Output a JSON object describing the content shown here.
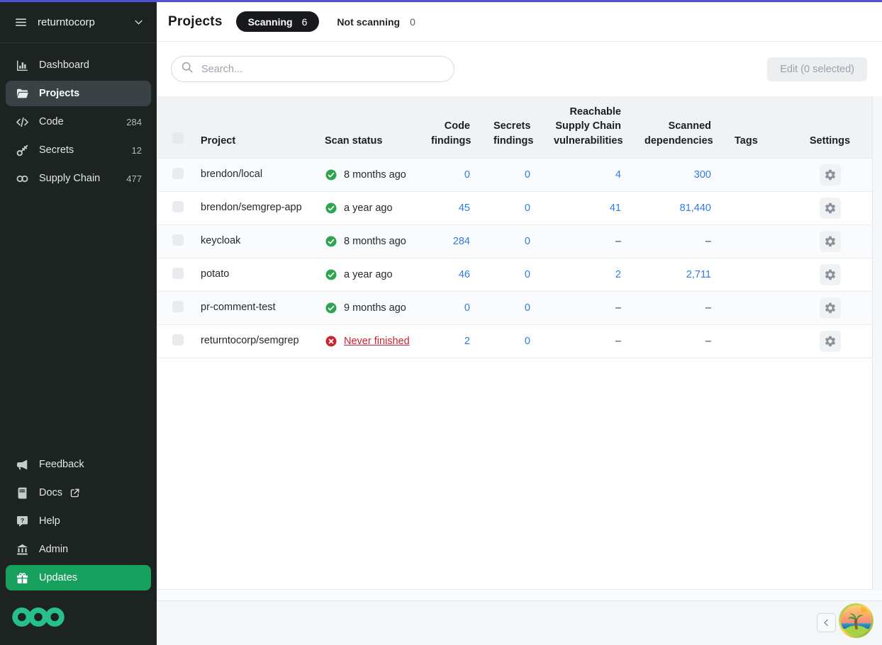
{
  "colors": {
    "topline": "#4f52d9",
    "link_blue": "#2f7be6",
    "updates_green": "#18a05f",
    "brand_green": "#27c08a",
    "success_green": "#2da44e",
    "error_red": "#cb2431",
    "sidebar_bg": "#1c2321",
    "sidebar_active": "#3a4245"
  },
  "sidebar": {
    "org": "returntocorp",
    "menu_icon": "menu-icon",
    "org_chevron_icon": "chevron-down-icon",
    "items": [
      {
        "label": "Dashboard",
        "icon": "dashboard",
        "count": "",
        "active": false
      },
      {
        "label": "Projects",
        "icon": "folder",
        "count": "",
        "active": true
      },
      {
        "label": "Code",
        "icon": "code",
        "count": "284",
        "active": false
      },
      {
        "label": "Secrets",
        "icon": "key",
        "count": "12",
        "active": false
      },
      {
        "label": "Supply Chain",
        "icon": "chain",
        "count": "477",
        "active": false
      }
    ],
    "footer_items": [
      {
        "label": "Feedback",
        "icon": "megaphone",
        "external": false,
        "highlight": false
      },
      {
        "label": "Docs",
        "icon": "book",
        "external": true,
        "highlight": false
      },
      {
        "label": "Help",
        "icon": "help",
        "external": false,
        "highlight": false
      },
      {
        "label": "Admin",
        "icon": "bank",
        "external": false,
        "highlight": false
      },
      {
        "label": "Updates",
        "icon": "gift",
        "external": false,
        "highlight": true
      }
    ],
    "logo_icon": "semgrep-logo"
  },
  "header": {
    "title": "Projects",
    "tabs": [
      {
        "label": "Scanning",
        "count": "6",
        "active": true
      },
      {
        "label": "Not scanning",
        "count": "0",
        "active": false
      }
    ]
  },
  "toolbar": {
    "search_placeholder": "Search...",
    "edit_label": "Edit (0 selected)"
  },
  "table": {
    "columns": [
      "Project",
      "Scan status",
      "Code findings",
      "Secrets findings",
      "Reachable Supply Chain vulnerabilities",
      "Scanned dependencies",
      "Tags",
      "Settings"
    ],
    "rows": [
      {
        "project": "brendon/local",
        "status": {
          "text": "8 months ago",
          "state": "success",
          "link": false
        },
        "code": "0",
        "secrets": "0",
        "reachable": "4",
        "scanned": "300",
        "tags": ""
      },
      {
        "project": "brendon/semgrep-app",
        "status": {
          "text": "a year ago",
          "state": "success",
          "link": false
        },
        "code": "45",
        "secrets": "0",
        "reachable": "41",
        "scanned": "81,440",
        "tags": ""
      },
      {
        "project": "keycloak",
        "status": {
          "text": "8 months ago",
          "state": "success",
          "link": false
        },
        "code": "284",
        "secrets": "0",
        "reachable": "–",
        "scanned": "–",
        "tags": ""
      },
      {
        "project": "potato",
        "status": {
          "text": "a year ago",
          "state": "success",
          "link": false
        },
        "code": "46",
        "secrets": "0",
        "reachable": "2",
        "scanned": "2,711",
        "tags": ""
      },
      {
        "project": "pr-comment-test",
        "status": {
          "text": "9 months ago",
          "state": "success",
          "link": false
        },
        "code": "0",
        "secrets": "0",
        "reachable": "–",
        "scanned": "–",
        "tags": ""
      },
      {
        "project": "returntocorp/semgrep",
        "status": {
          "text": "Never finished",
          "state": "error",
          "link": true
        },
        "code": "2",
        "secrets": "0",
        "reachable": "–",
        "scanned": "–",
        "tags": ""
      }
    ]
  },
  "footer": {
    "prev_icon": "chevron-left-icon",
    "avatar_icon": "island-avatar"
  }
}
